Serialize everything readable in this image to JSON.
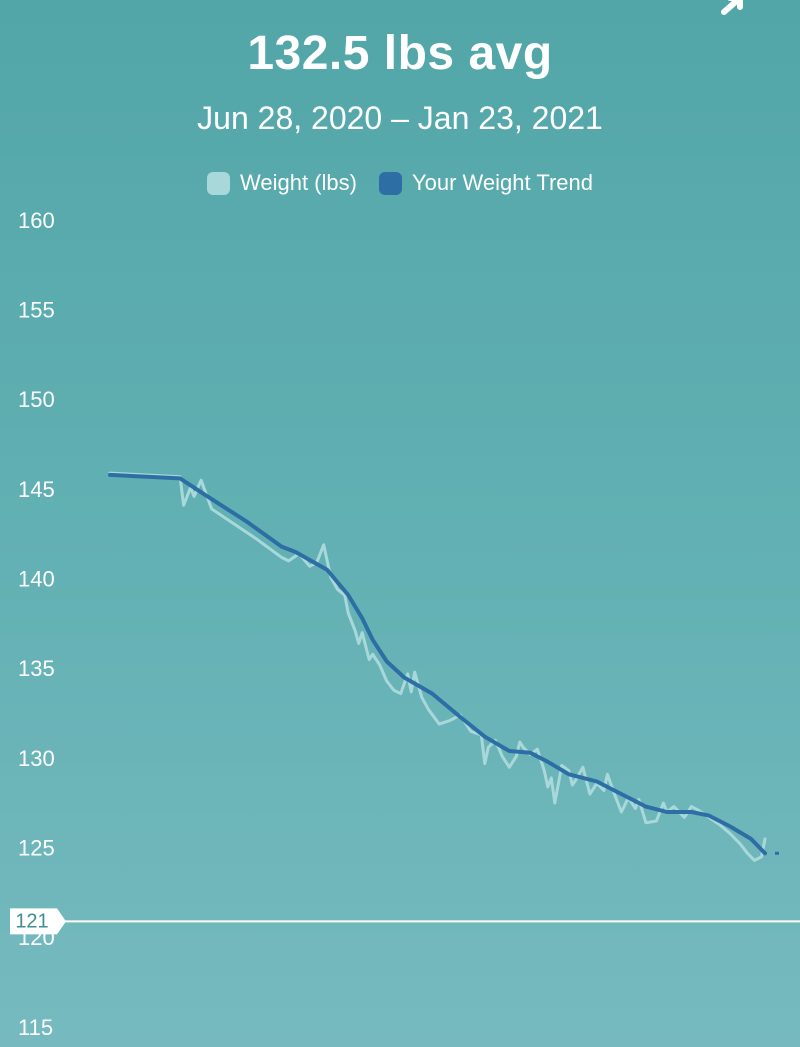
{
  "header": {
    "title": "132.5 lbs avg",
    "date_range": "Jun 28, 2020 – Jan 23, 2021"
  },
  "icons": {
    "corner": "collapse-arrow-icon"
  },
  "colors": {
    "weight": "#a9d8da",
    "trend": "#2d6ea4",
    "goal_line": "#ffffff"
  },
  "goal": {
    "value": 121,
    "label": "121"
  },
  "chart_data": {
    "type": "line",
    "title": "132.5 lbs avg",
    "subtitle": "Jun 28, 2020 – Jan 23, 2021",
    "xlabel": "",
    "ylabel": "",
    "ylim": [
      115,
      160
    ],
    "xlim": [
      "2020-06-28",
      "2021-01-23"
    ],
    "y_ticks": [
      160,
      155,
      150,
      145,
      140,
      135,
      130,
      125,
      120,
      115
    ],
    "legend": {
      "placement": "top-center",
      "entries": [
        "Weight (lbs)",
        "Your Weight Trend"
      ]
    },
    "grid": false,
    "series": [
      {
        "name": "Weight (lbs)",
        "points": [
          [
            "2020-07-12",
            146.0
          ],
          [
            "2020-08-01",
            145.8
          ],
          [
            "2020-08-02",
            144.2
          ],
          [
            "2020-08-04",
            145.2
          ],
          [
            "2020-08-05",
            144.7
          ],
          [
            "2020-08-07",
            145.6
          ],
          [
            "2020-08-10",
            144.0
          ],
          [
            "2020-08-23",
            142.3
          ],
          [
            "2020-08-30",
            141.3
          ],
          [
            "2020-09-01",
            141.1
          ],
          [
            "2020-09-04",
            141.5
          ],
          [
            "2020-09-07",
            140.8
          ],
          [
            "2020-09-09",
            141.0
          ],
          [
            "2020-09-11",
            142.0
          ],
          [
            "2020-09-13",
            140.2
          ],
          [
            "2020-09-15",
            139.5
          ],
          [
            "2020-09-17",
            139.2
          ],
          [
            "2020-09-18",
            138.2
          ],
          [
            "2020-09-20",
            137.2
          ],
          [
            "2020-09-21",
            136.5
          ],
          [
            "2020-09-22",
            137.1
          ],
          [
            "2020-09-24",
            135.6
          ],
          [
            "2020-09-25",
            135.9
          ],
          [
            "2020-09-27",
            135.3
          ],
          [
            "2020-09-29",
            134.4
          ],
          [
            "2020-10-01",
            133.9
          ],
          [
            "2020-10-03",
            133.7
          ],
          [
            "2020-10-05",
            134.8
          ],
          [
            "2020-10-06",
            133.8
          ],
          [
            "2020-10-07",
            134.9
          ],
          [
            "2020-10-09",
            133.5
          ],
          [
            "2020-10-11",
            132.8
          ],
          [
            "2020-10-14",
            132.0
          ],
          [
            "2020-10-17",
            132.2
          ],
          [
            "2020-10-20",
            132.5
          ],
          [
            "2020-10-23",
            131.6
          ],
          [
            "2020-10-26",
            131.4
          ],
          [
            "2020-10-27",
            129.8
          ],
          [
            "2020-10-28",
            130.7
          ],
          [
            "2020-10-30",
            131.1
          ],
          [
            "2020-11-01",
            130.2
          ],
          [
            "2020-11-03",
            129.6
          ],
          [
            "2020-11-05",
            130.2
          ],
          [
            "2020-11-06",
            131.0
          ],
          [
            "2020-11-07",
            130.7
          ],
          [
            "2020-11-09",
            130.3
          ],
          [
            "2020-11-11",
            130.6
          ],
          [
            "2020-11-13",
            129.4
          ],
          [
            "2020-11-14",
            128.5
          ],
          [
            "2020-11-15",
            129.0
          ],
          [
            "2020-11-16",
            127.6
          ],
          [
            "2020-11-18",
            129.7
          ],
          [
            "2020-11-20",
            129.4
          ],
          [
            "2020-11-21",
            128.6
          ],
          [
            "2020-11-22",
            128.9
          ],
          [
            "2020-11-24",
            129.6
          ],
          [
            "2020-11-26",
            128.1
          ],
          [
            "2020-11-28",
            128.7
          ],
          [
            "2020-11-30",
            128.3
          ],
          [
            "2020-12-01",
            129.2
          ],
          [
            "2020-12-03",
            128.1
          ],
          [
            "2020-12-05",
            127.1
          ],
          [
            "2020-12-07",
            127.9
          ],
          [
            "2020-12-09",
            127.3
          ],
          [
            "2020-12-10",
            127.8
          ],
          [
            "2020-12-12",
            126.5
          ],
          [
            "2020-12-15",
            126.6
          ],
          [
            "2020-12-17",
            127.6
          ],
          [
            "2020-12-18",
            127.1
          ],
          [
            "2020-12-20",
            127.4
          ],
          [
            "2020-12-23",
            126.8
          ],
          [
            "2020-12-25",
            127.4
          ],
          [
            "2020-12-27",
            127.2
          ],
          [
            "2020-12-30",
            126.8
          ],
          [
            "2021-01-02",
            126.4
          ],
          [
            "2021-01-05",
            125.9
          ],
          [
            "2021-01-08",
            125.3
          ],
          [
            "2021-01-10",
            124.8
          ],
          [
            "2021-01-12",
            124.4
          ],
          [
            "2021-01-14",
            124.6
          ],
          [
            "2021-01-15",
            125.6
          ]
        ]
      },
      {
        "name": "Your Weight Trend",
        "points": [
          [
            "2020-07-12",
            145.9
          ],
          [
            "2020-08-01",
            145.7
          ],
          [
            "2020-08-08",
            144.8
          ],
          [
            "2020-08-20",
            143.3
          ],
          [
            "2020-08-30",
            141.9
          ],
          [
            "2020-09-03",
            141.6
          ],
          [
            "2020-09-12",
            140.6
          ],
          [
            "2020-09-18",
            139.2
          ],
          [
            "2020-09-22",
            137.9
          ],
          [
            "2020-09-25",
            136.7
          ],
          [
            "2020-09-29",
            135.5
          ],
          [
            "2020-10-04",
            134.6
          ],
          [
            "2020-10-12",
            133.7
          ],
          [
            "2020-10-20",
            132.4
          ],
          [
            "2020-10-27",
            131.3
          ],
          [
            "2020-11-03",
            130.5
          ],
          [
            "2020-11-09",
            130.4
          ],
          [
            "2020-11-14",
            129.9
          ],
          [
            "2020-11-20",
            129.2
          ],
          [
            "2020-11-28",
            128.8
          ],
          [
            "2020-12-05",
            128.1
          ],
          [
            "2020-12-12",
            127.4
          ],
          [
            "2020-12-18",
            127.1
          ],
          [
            "2020-12-25",
            127.1
          ],
          [
            "2020-12-30",
            126.9
          ],
          [
            "2021-01-05",
            126.3
          ],
          [
            "2021-01-11",
            125.6
          ],
          [
            "2021-01-15",
            124.8
          ]
        ]
      }
    ]
  }
}
